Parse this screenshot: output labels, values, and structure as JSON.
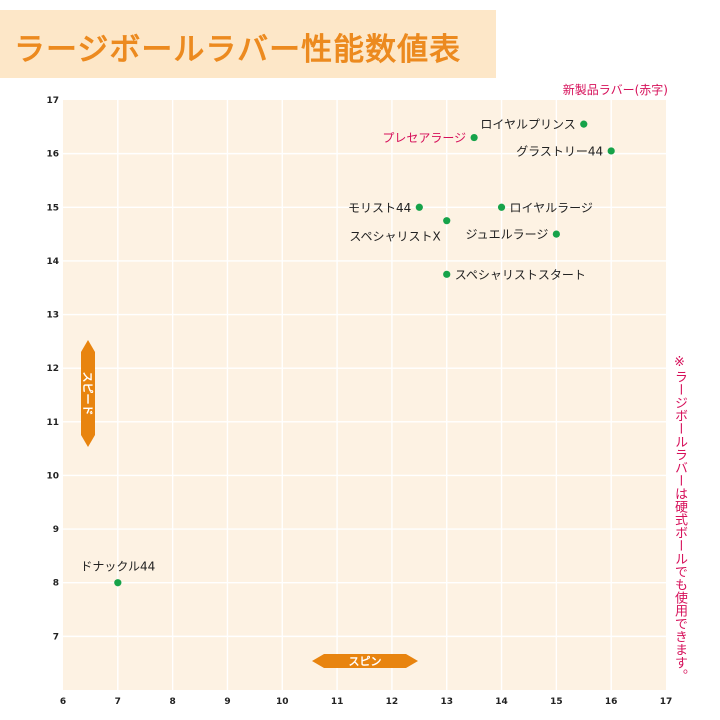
{
  "header": {
    "title": "ラージボールラバー性能数値表",
    "new_product_note": "新製品ラバー(赤字)",
    "side_note": "※ラージボールラバーは硬式ボールでも使用できます。"
  },
  "colors": {
    "title_band": "#fde7c8",
    "title_text": "#ec8a1f",
    "plot_background": "#fdf2e3",
    "point": "#16a34a",
    "highlight_text": "#d6105a",
    "axis_badge": "#e8840f"
  },
  "chart_data": {
    "type": "scatter",
    "xlabel": "スピン",
    "ylabel": "スピード",
    "xlim": [
      6,
      17
    ],
    "ylim": [
      6,
      17
    ],
    "x_ticks": [
      "6",
      "7",
      "8",
      "9",
      "10",
      "11",
      "12",
      "13",
      "14",
      "15",
      "16",
      "17"
    ],
    "y_ticks": [
      "7",
      "8",
      "9",
      "10",
      "11",
      "12",
      "13",
      "14",
      "15",
      "16",
      "17"
    ],
    "grid": true,
    "points": [
      {
        "label": "ロイヤルプリンス",
        "x": 15.5,
        "y": 16.55,
        "new": false,
        "label_side": "left"
      },
      {
        "label": "プレセアラージ",
        "x": 13.5,
        "y": 16.3,
        "new": true,
        "label_side": "left"
      },
      {
        "label": "グラストリー44",
        "x": 16.0,
        "y": 16.05,
        "new": false,
        "label_side": "left"
      },
      {
        "label": "モリスト44",
        "x": 12.5,
        "y": 15.0,
        "new": false,
        "label_side": "left"
      },
      {
        "label": "ロイヤルラージ",
        "x": 14.0,
        "y": 15.0,
        "new": false,
        "label_side": "right"
      },
      {
        "label": "スペシャリストX",
        "x": 13.0,
        "y": 14.75,
        "new": false,
        "label_side": "belowleft"
      },
      {
        "label": "ジュエルラージ",
        "x": 15.0,
        "y": 14.5,
        "new": false,
        "label_side": "left"
      },
      {
        "label": "スペシャリストスタート",
        "x": 13.0,
        "y": 13.75,
        "new": false,
        "label_side": "right"
      },
      {
        "label": "ドナックル44",
        "x": 7.0,
        "y": 8.0,
        "new": false,
        "label_side": "above"
      }
    ]
  }
}
